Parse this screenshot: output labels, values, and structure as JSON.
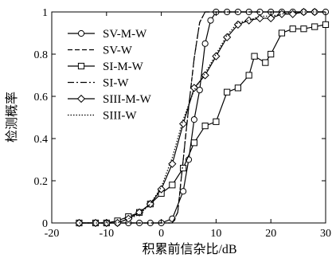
{
  "chart_data": {
    "type": "line",
    "xlabel": "积累前信杂比/dB",
    "ylabel": "检测概率",
    "xlim": [
      -20,
      30
    ],
    "ylim": [
      0,
      1
    ],
    "xticks": [
      -20,
      -10,
      0,
      10,
      20,
      30
    ],
    "yticks": [
      0,
      0.2,
      0.4,
      0.6,
      0.8,
      1
    ],
    "xtick_labels": [
      "-20",
      "-10",
      "0",
      "10",
      "20",
      "30"
    ],
    "ytick_labels": [
      "0",
      "0.2",
      "0.4",
      "0.6",
      "0.8",
      "1"
    ],
    "grid": false,
    "legend_position": "top-left",
    "series": [
      {
        "name": "SV-M-W",
        "style": "solid",
        "marker": "circle",
        "x": [
          -15,
          -12,
          -10,
          -8,
          -6,
          -4,
          -2,
          0,
          2,
          4,
          5,
          6,
          7,
          8,
          9,
          10,
          12,
          14,
          16,
          18,
          20,
          22,
          24,
          26,
          28,
          30
        ],
        "y": [
          0,
          0,
          0,
          0,
          0,
          0,
          0,
          0,
          0.02,
          0.15,
          0.3,
          0.49,
          0.63,
          0.85,
          0.96,
          1,
          1,
          1,
          1,
          1,
          1,
          1,
          1,
          1,
          1,
          1
        ]
      },
      {
        "name": "SV-W",
        "style": "dashed",
        "marker": "none",
        "x": [
          -15,
          -10,
          0,
          2,
          3,
          4,
          5,
          6,
          7,
          8,
          9,
          10,
          20,
          30
        ],
        "y": [
          0,
          0,
          0,
          0,
          0.05,
          0.3,
          0.55,
          0.78,
          0.95,
          1,
          1,
          1,
          1,
          1
        ]
      },
      {
        "name": "SI-M-W",
        "style": "solid",
        "marker": "square",
        "x": [
          -15,
          -12,
          -10,
          -8,
          -6,
          -4,
          -2,
          0,
          2,
          4,
          6,
          8,
          10,
          12,
          14,
          16,
          17,
          19,
          20,
          22,
          24,
          26,
          28,
          30
        ],
        "y": [
          0,
          0,
          0,
          0.01,
          0.03,
          0.05,
          0.09,
          0.14,
          0.18,
          0.26,
          0.38,
          0.46,
          0.48,
          0.62,
          0.64,
          0.7,
          0.79,
          0.76,
          0.8,
          0.9,
          0.92,
          0.92,
          0.93,
          0.94
        ]
      },
      {
        "name": "SI-W",
        "style": "dashdot",
        "marker": "none",
        "x": [
          -15,
          -10,
          0,
          2,
          3,
          4,
          5,
          6,
          7,
          8,
          9,
          10,
          20,
          30
        ],
        "y": [
          0,
          0,
          0,
          0,
          0.05,
          0.3,
          0.55,
          0.78,
          0.95,
          1,
          1,
          1,
          1,
          1
        ]
      },
      {
        "name": "SIII-M-W",
        "style": "solid",
        "marker": "diamond",
        "x": [
          -15,
          -12,
          -10,
          -8,
          -6,
          -4,
          -2,
          0,
          2,
          4,
          6,
          8,
          10,
          12,
          14,
          16,
          18,
          20,
          22,
          24,
          26,
          28
        ],
        "y": [
          0,
          0,
          0,
          0,
          0.02,
          0.05,
          0.09,
          0.16,
          0.28,
          0.47,
          0.64,
          0.7,
          0.79,
          0.88,
          0.94,
          0.96,
          0.97,
          0.97,
          0.99,
          0.99,
          1,
          1
        ]
      },
      {
        "name": "SIII-W",
        "style": "dotted",
        "marker": "none",
        "x": [
          -15,
          -12,
          -10,
          -8,
          -6,
          -4,
          -2,
          0,
          2,
          4,
          6,
          8,
          10,
          12,
          14,
          16,
          18,
          20,
          22,
          24,
          26,
          28,
          30
        ],
        "y": [
          0,
          0,
          0,
          0,
          0.02,
          0.04,
          0.09,
          0.17,
          0.31,
          0.49,
          0.63,
          0.71,
          0.8,
          0.89,
          0.95,
          0.96,
          0.98,
          0.98,
          0.99,
          1,
          1,
          1,
          1
        ]
      }
    ]
  }
}
